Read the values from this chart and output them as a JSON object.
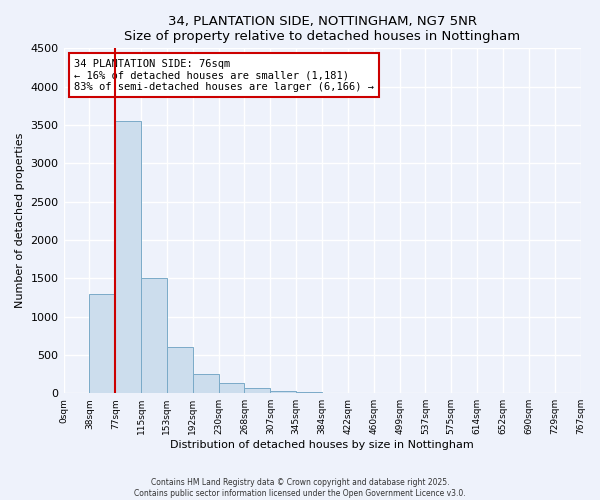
{
  "title": "34, PLANTATION SIDE, NOTTINGHAM, NG7 5NR",
  "subtitle": "Size of property relative to detached houses in Nottingham",
  "xlabel": "Distribution of detached houses by size in Nottingham",
  "ylabel": "Number of detached properties",
  "bin_labels": [
    "0sqm",
    "38sqm",
    "77sqm",
    "115sqm",
    "153sqm",
    "192sqm",
    "230sqm",
    "268sqm",
    "307sqm",
    "345sqm",
    "384sqm",
    "422sqm",
    "460sqm",
    "499sqm",
    "537sqm",
    "575sqm",
    "614sqm",
    "652sqm",
    "690sqm",
    "729sqm",
    "767sqm"
  ],
  "bar_values": [
    0,
    1300,
    3550,
    1500,
    600,
    250,
    130,
    70,
    30,
    10,
    5,
    2,
    1,
    0,
    0,
    0,
    0,
    0,
    0,
    0
  ],
  "bar_color": "#ccdded",
  "bar_edge_color": "#7aaac8",
  "property_bin_index": 2,
  "vline_color": "#cc0000",
  "annotation_text": "34 PLANTATION SIDE: 76sqm\n← 16% of detached houses are smaller (1,181)\n83% of semi-detached houses are larger (6,166) →",
  "annotation_box_color": "#ffffff",
  "annotation_box_edge_color": "#cc0000",
  "ylim": [
    0,
    4500
  ],
  "yticks": [
    0,
    500,
    1000,
    1500,
    2000,
    2500,
    3000,
    3500,
    4000,
    4500
  ],
  "background_color": "#eef2fb",
  "grid_color": "#ffffff",
  "footer1": "Contains HM Land Registry data © Crown copyright and database right 2025.",
  "footer2": "Contains public sector information licensed under the Open Government Licence v3.0."
}
